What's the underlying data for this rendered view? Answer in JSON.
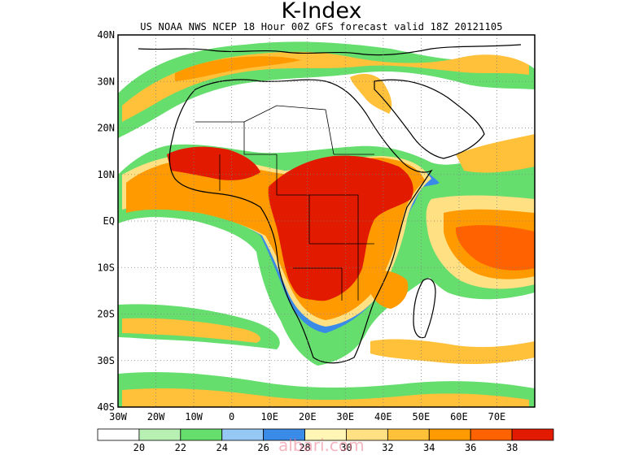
{
  "title": "K-Index",
  "subtitle": "US NOAA NWS NCEP 18 Hour 00Z GFS forecast valid 18Z 20121105",
  "watermark": "albari.com",
  "map": {
    "lon_range": [
      -30,
      80
    ],
    "lat_range": [
      -40,
      40
    ],
    "lon_ticks": [
      "30W",
      "20W",
      "10W",
      "0",
      "10E",
      "20E",
      "30E",
      "40E",
      "50E",
      "60E",
      "70E"
    ],
    "lat_ticks": [
      "40N",
      "30N",
      "20N",
      "10N",
      "EQ",
      "10S",
      "20S",
      "30S",
      "40S"
    ]
  },
  "colorbar": {
    "colors": [
      "#ffffff",
      "#b8f0b4",
      "#66de6e",
      "#96c8f5",
      "#3a8ae8",
      "#fff5b4",
      "#ffe083",
      "#ffc03a",
      "#ff9a00",
      "#ff6200",
      "#e11a00"
    ],
    "labels": [
      "20",
      "22",
      "24",
      "26",
      "28",
      "30",
      "32",
      "34",
      "36",
      "38"
    ]
  }
}
